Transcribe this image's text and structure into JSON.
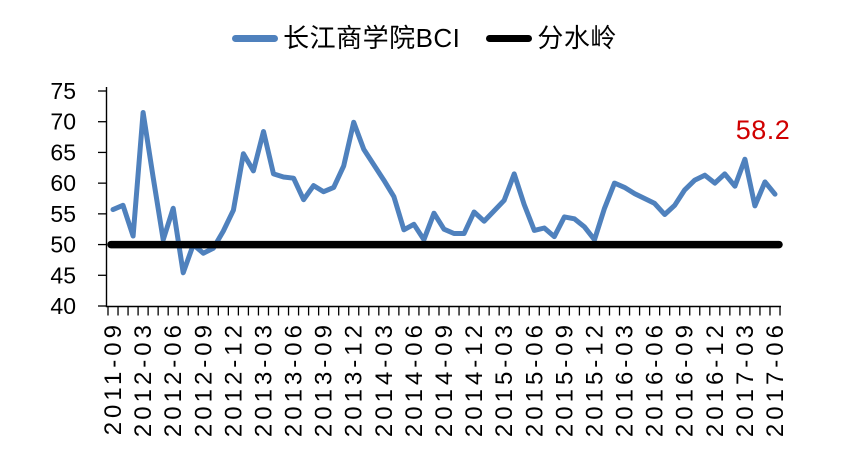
{
  "chart_data": {
    "type": "line",
    "title": "",
    "xlabel": "",
    "ylabel": "",
    "ylim": [
      40,
      75
    ],
    "yticks": [
      40,
      45,
      50,
      55,
      60,
      65,
      70,
      75
    ],
    "grid": false,
    "legend_position": "top",
    "x_label_step": 3,
    "n_points": 67,
    "x_tick_labels": [
      "2011-09",
      "2012-03",
      "2012-06",
      "2012-09",
      "2012-12",
      "2013-03",
      "2013-06",
      "2013-09",
      "2013-12",
      "2014-03",
      "2014-06",
      "2014-09",
      "2014-12",
      "2015-03",
      "2015-06",
      "2015-09",
      "2015-12",
      "2016-03",
      "2016-06",
      "2016-09",
      "2016-12",
      "2017-03",
      "2017-06"
    ],
    "series": [
      {
        "name": "长江商学院BCI",
        "color": "#4F81BD",
        "values": [
          55.7,
          56.4,
          51.4,
          71.5,
          61.0,
          50.8,
          55.9,
          45.4,
          50.0,
          48.6,
          49.4,
          52.2,
          55.6,
          64.8,
          62.0,
          68.4,
          61.5,
          61.0,
          60.8,
          57.3,
          59.6,
          58.6,
          59.3,
          62.8,
          69.9,
          65.5,
          63.0,
          60.5,
          57.8,
          52.4,
          53.3,
          50.8,
          55.1,
          52.5,
          51.8,
          51.8,
          55.3,
          53.8,
          55.5,
          57.2,
          61.5,
          56.5,
          52.3,
          52.7,
          51.3,
          54.5,
          54.2,
          52.9,
          50.8,
          55.9,
          60.0,
          59.3,
          58.3,
          57.5,
          56.7,
          54.9,
          56.4,
          58.9,
          60.5,
          61.3,
          60.0,
          61.5,
          59.5,
          63.9,
          56.3,
          60.2,
          58.2
        ]
      },
      {
        "name": "分水岭",
        "color": "#000000",
        "constant_value": 50
      }
    ],
    "annotation": {
      "text": "58.2",
      "value": 58.2,
      "series": "长江商学院BCI",
      "x_label": "2017-06",
      "color": "#D00000"
    }
  }
}
